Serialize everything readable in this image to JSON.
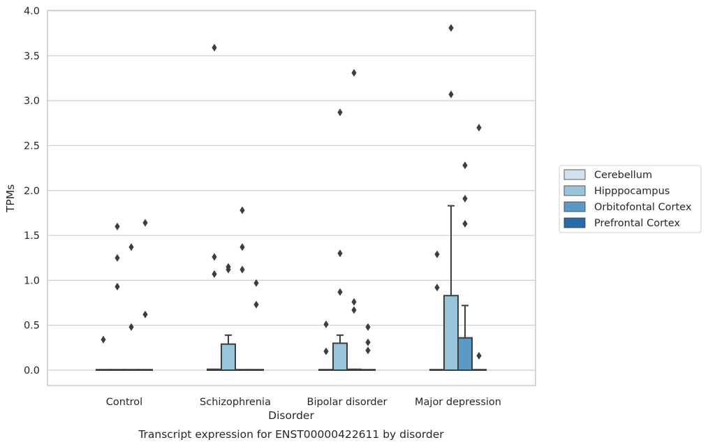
{
  "chart_data": {
    "type": "box",
    "xlabel": "Disorder",
    "ylabel": "TPMs",
    "caption": "Transcript expression for ENST00000422611 by disorder",
    "ylim": [
      -0.18,
      4.0
    ],
    "yticks": [
      "0.0",
      "0.5",
      "1.0",
      "1.5",
      "2.0",
      "2.5",
      "3.0",
      "3.5",
      "4.0"
    ],
    "grid": "horizontal",
    "legend_position": "right",
    "categories": [
      "Control",
      "Schizophrenia",
      "Bipolar disorder",
      "Major depression"
    ],
    "series": [
      {
        "name": "Cerebellum",
        "color": "#d1e1f0",
        "boxes": [
          {
            "q1": 0,
            "median": 0,
            "q3": 0,
            "whisker_low": 0,
            "whisker_high": 0,
            "outliers": [
              0.34
            ]
          },
          {
            "q1": 0,
            "median": 0,
            "q3": 0.01,
            "whisker_low": 0,
            "whisker_high": 0.01,
            "outliers": [
              1.07,
              1.26,
              3.59
            ]
          },
          {
            "q1": 0,
            "median": 0,
            "q3": 0,
            "whisker_low": 0,
            "whisker_high": 0,
            "outliers": [
              0.21,
              0.51
            ]
          },
          {
            "q1": 0,
            "median": 0,
            "q3": 0,
            "whisker_low": 0,
            "whisker_high": 0,
            "outliers": [
              0.92,
              1.29
            ]
          }
        ]
      },
      {
        "name": "Hipppocampus",
        "color": "#9ac3dc",
        "boxes": [
          {
            "q1": 0,
            "median": 0,
            "q3": 0,
            "whisker_low": 0,
            "whisker_high": 0,
            "outliers": [
              0.93,
              1.25,
              1.6
            ]
          },
          {
            "q1": 0,
            "median": 0,
            "q3": 0.29,
            "whisker_low": 0,
            "whisker_high": 0.39,
            "outliers": [
              1.12,
              1.15
            ]
          },
          {
            "q1": 0,
            "median": 0,
            "q3": 0.3,
            "whisker_low": 0,
            "whisker_high": 0.39,
            "outliers": [
              0.87,
              1.3,
              2.87
            ]
          },
          {
            "q1": 0,
            "median": 0,
            "q3": 0.83,
            "whisker_low": 0,
            "whisker_high": 1.83,
            "outliers": [
              3.07,
              3.81
            ]
          }
        ]
      },
      {
        "name": "Orbitofontal Cortex",
        "color": "#5a98c6",
        "boxes": [
          {
            "q1": 0,
            "median": 0,
            "q3": 0,
            "whisker_low": 0,
            "whisker_high": 0,
            "outliers": [
              0.48,
              1.37
            ]
          },
          {
            "q1": 0,
            "median": 0,
            "q3": 0,
            "whisker_low": 0,
            "whisker_high": 0,
            "outliers": [
              1.12,
              1.37,
              1.78
            ]
          },
          {
            "q1": 0,
            "median": 0,
            "q3": 0.01,
            "whisker_low": 0,
            "whisker_high": 0.01,
            "outliers": [
              0.67,
              0.76,
              3.31
            ]
          },
          {
            "q1": 0,
            "median": 0,
            "q3": 0.36,
            "whisker_low": 0,
            "whisker_high": 0.72,
            "outliers": [
              1.63,
              1.91,
              2.28
            ]
          }
        ]
      },
      {
        "name": "Prefrontal Cortex",
        "color": "#2a6aa6",
        "boxes": [
          {
            "q1": 0,
            "median": 0,
            "q3": 0,
            "whisker_low": 0,
            "whisker_high": 0,
            "outliers": [
              0.62,
              1.64
            ]
          },
          {
            "q1": 0,
            "median": 0,
            "q3": 0,
            "whisker_low": 0,
            "whisker_high": 0,
            "outliers": [
              0.73,
              0.97
            ]
          },
          {
            "q1": 0,
            "median": 0,
            "q3": 0,
            "whisker_low": 0,
            "whisker_high": 0,
            "outliers": [
              0.22,
              0.31,
              0.48
            ]
          },
          {
            "q1": 0,
            "median": 0,
            "q3": 0,
            "whisker_low": 0,
            "whisker_high": 0,
            "outliers": [
              0.16,
              2.7
            ]
          }
        ]
      }
    ]
  }
}
